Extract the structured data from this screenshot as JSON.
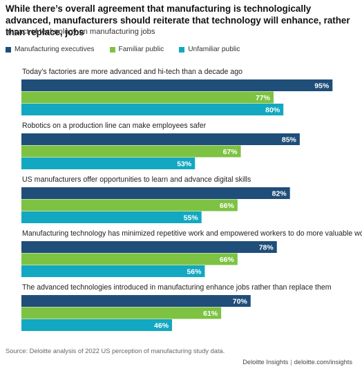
{
  "title": "While there’s overall agreement that manufacturing is technologically advanced, manufacturers should reiterate that technology will enhance, rather than replace, jobs",
  "subtitle": "Impact of technology on manufacturing jobs",
  "legend": [
    {
      "label": "Manufacturing executives",
      "color": "#1f4e79"
    },
    {
      "label": "Familiar public",
      "color": "#7dc242"
    },
    {
      "label": "Unfamiliar public",
      "color": "#13a8c1"
    }
  ],
  "chart_data": {
    "type": "bar",
    "orientation": "horizontal",
    "title": "Impact of technology on manufacturing jobs",
    "xlim": [
      0,
      100
    ],
    "value_suffix": "%",
    "grid": false,
    "legend_position": "top-left",
    "categories": [
      "Today’s factories are more advanced and hi-tech than a decade ago",
      "Robotics on a production line can make employees safer",
      "US manufacturers offer opportunities to learn and advance digital skills",
      "Manufacturing technology has minimized repetitive work and empowered workers to do more valuable work",
      "The advanced technologies introduced in manufacturing enhance jobs rather than replace them"
    ],
    "series": [
      {
        "name": "Manufacturing executives",
        "color": "#1f4e79",
        "values": [
          95,
          85,
          82,
          78,
          70
        ]
      },
      {
        "name": "Familiar public",
        "color": "#7dc242",
        "values": [
          77,
          67,
          66,
          66,
          61
        ]
      },
      {
        "name": "Unfamiliar public",
        "color": "#13a8c1",
        "values": [
          80,
          53,
          55,
          56,
          46
        ]
      }
    ]
  },
  "source": "Source: Deloitte analysis of 2022 US perception of manufacturing study data.",
  "brand": {
    "name": "Deloitte Insights",
    "separator": "|",
    "url": "deloitte.com/insights"
  }
}
